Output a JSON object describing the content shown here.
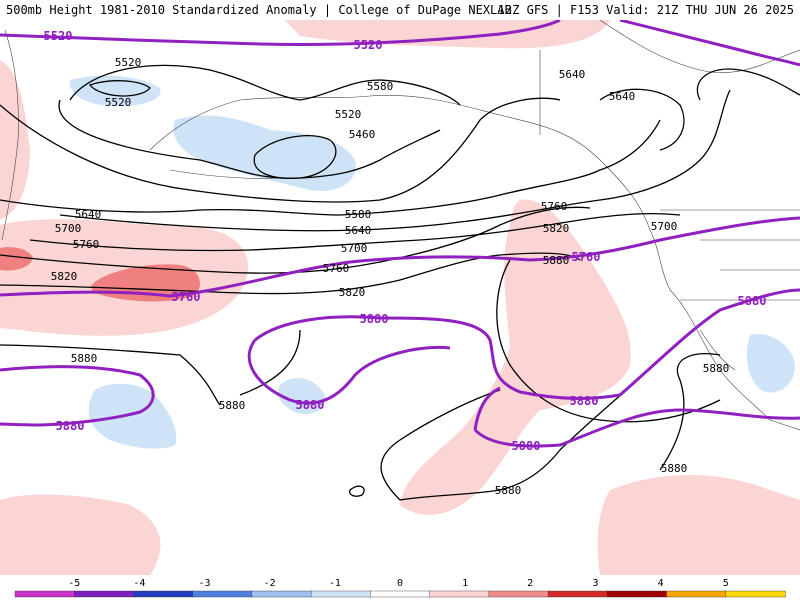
{
  "header": {
    "title": "500mb Height 1981-2010 Standardized Anomaly | College of DuPage NEXLAB",
    "run_info": "12Z GFS | F153 Valid: 21Z THU JUN 26 2025"
  },
  "contours": {
    "black_labels": [
      "5520",
      "5580",
      "5520",
      "5460",
      "5520",
      "5580",
      "5640",
      "5700",
      "5760",
      "5820",
      "5640",
      "5700",
      "5760",
      "5820",
      "5880",
      "5880",
      "5640",
      "5640",
      "5760",
      "5820",
      "5880",
      "5700",
      "5880",
      "5880",
      "5880"
    ],
    "purple_labels": [
      "5520",
      "5520",
      "5760",
      "5880",
      "5880",
      "5880",
      "5760",
      "5880",
      "5880"
    ]
  },
  "colorbar": {
    "ticks": [
      "-5",
      "-4",
      "-3",
      "-2",
      "-1",
      "0",
      "1",
      "2",
      "3",
      "4",
      "5"
    ],
    "colors": [
      "#cc33cc",
      "#7f1fbf",
      "#1f3fbf",
      "#4f7fdf",
      "#9fbfef",
      "#cfe3f7",
      "#ffffff",
      "#fbd4d4",
      "#f08c8c",
      "#d42a2a",
      "#a00000",
      "#ffa500",
      "#ffd700"
    ]
  }
}
